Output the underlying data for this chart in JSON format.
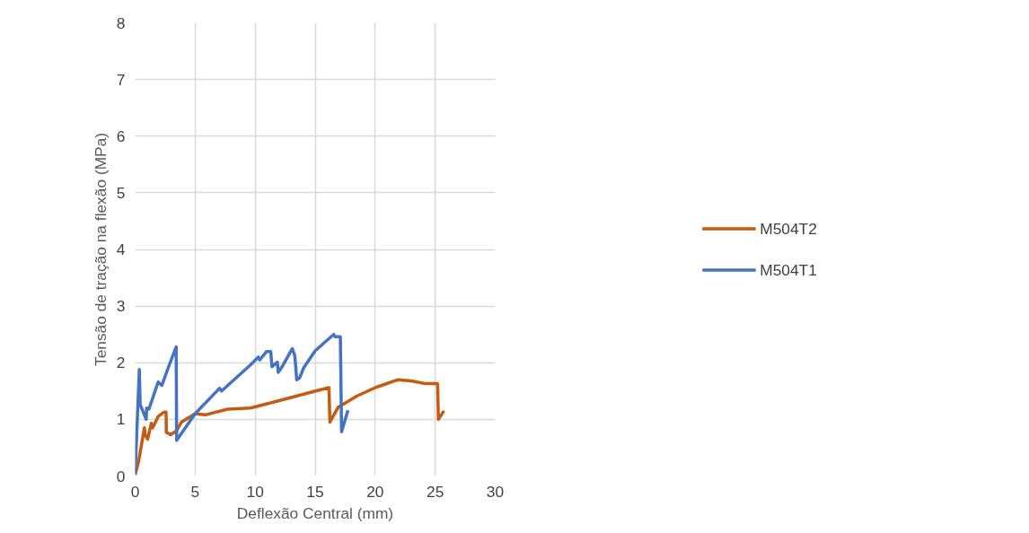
{
  "chart_data": {
    "type": "line",
    "xlabel": "Deflexão Central (mm)",
    "ylabel": "Tensão de tração na flexão (MPa)",
    "xlim": [
      0,
      30
    ],
    "xticks": [
      0,
      5,
      10,
      15,
      20,
      25,
      30
    ],
    "ylim": [
      0,
      8
    ],
    "yticks": [
      0,
      1,
      2,
      3,
      4,
      5,
      6,
      7,
      8
    ],
    "grid": true,
    "legend": "right",
    "line_style": "solid",
    "marker": "none",
    "series": [
      {
        "name": "M504T2",
        "color": "#c55a11",
        "x": [
          0,
          0.3,
          0.77,
          0.85,
          1.04,
          1.35,
          1.46,
          1.92,
          2.42,
          2.58,
          2.6,
          2.96,
          3.46,
          3.85,
          5,
          5.85,
          7.7,
          9.6,
          12,
          15.04,
          16.15,
          16.23,
          16.9,
          18.46,
          20,
          21.9,
          23,
          24.2,
          25.2,
          25.27,
          25.73
        ],
        "values": [
          0.02,
          0.27,
          0.85,
          0.72,
          0.65,
          0.93,
          0.85,
          1.05,
          1.13,
          1.13,
          0.77,
          0.73,
          0.8,
          0.95,
          1.1,
          1.08,
          1.18,
          1.2,
          1.33,
          1.5,
          1.56,
          0.95,
          1.21,
          1.41,
          1.56,
          1.7,
          1.68,
          1.63,
          1.63,
          1.0,
          1.15
        ]
      },
      {
        "name": "M504T1",
        "color": "#4472c4",
        "x": [
          0,
          0.35,
          0.42,
          0.92,
          0.96,
          1.15,
          1.92,
          2.23,
          2.7,
          3.42,
          3.46,
          5,
          7.04,
          7.2,
          9.6,
          10.27,
          10.38,
          10.96,
          11.3,
          11.4,
          11.85,
          11.92,
          12.3,
          13.1,
          13.3,
          13.4,
          13.46,
          13.7,
          14.04,
          15.0,
          16.54,
          16.65,
          17.1,
          17.2,
          17.73
        ],
        "values": [
          0.05,
          1.88,
          1.26,
          1.0,
          1.2,
          1.18,
          1.66,
          1.6,
          1.88,
          2.28,
          0.63,
          1.1,
          1.55,
          1.5,
          1.96,
          2.1,
          2.05,
          2.2,
          2.2,
          1.93,
          2.01,
          1.83,
          1.95,
          2.25,
          2.13,
          1.88,
          1.7,
          1.73,
          1.91,
          2.21,
          2.5,
          2.46,
          2.46,
          0.78,
          1.16
        ]
      }
    ]
  }
}
